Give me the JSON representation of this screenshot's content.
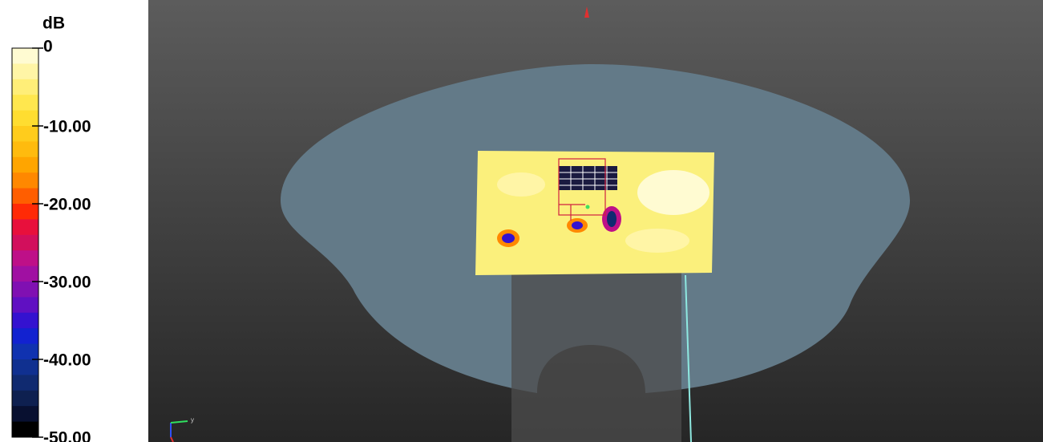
{
  "colorbar": {
    "title": "dB",
    "ticks": [
      0,
      {
        "value": -10,
        "label": "-10.00"
      },
      {
        "value": -20,
        "label": "-20.00"
      },
      {
        "value": -30,
        "label": "-30.00"
      },
      {
        "value": -40,
        "label": "-40.00"
      },
      {
        "value": -50,
        "label": "-50.00"
      }
    ],
    "colors": [
      "#fffbd2",
      "#fff5a6",
      "#ffee78",
      "#ffe74e",
      "#ffdd30",
      "#ffcc1c",
      "#ffbb0e",
      "#ffa500",
      "#ff8800",
      "#ff5e00",
      "#ff2a06",
      "#e8103c",
      "#d20f5c",
      "#be1088",
      "#a010a2",
      "#8010b2",
      "#6010c2",
      "#3412d0",
      "#1222d0",
      "#1032b0",
      "#103090",
      "#102a70",
      "#0e2050",
      "#081030",
      "#000000"
    ]
  },
  "viewport": {
    "axis_label": "y"
  }
}
